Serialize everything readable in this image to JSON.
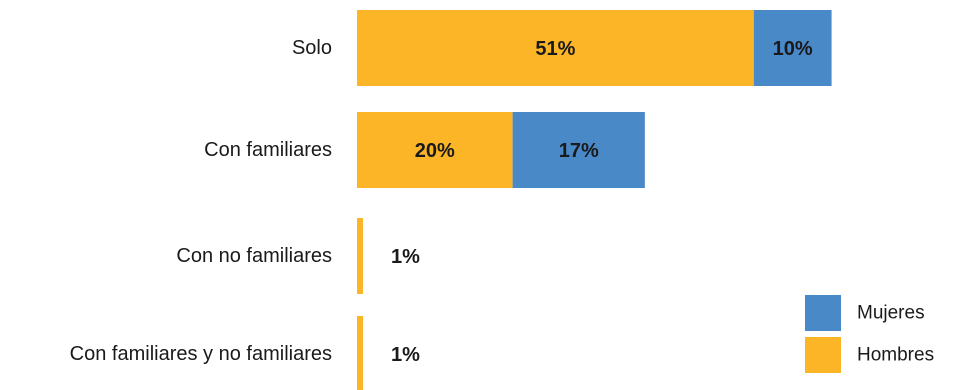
{
  "chart_data": {
    "type": "bar",
    "orientation": "horizontal",
    "stacked": true,
    "categories": [
      "Solo",
      "Con familiares",
      "Con no familiares",
      "Con familiares y no familiares"
    ],
    "series": [
      {
        "name": "Hombres",
        "values": [
          51,
          20,
          1,
          1
        ],
        "labels": [
          "51%",
          "20%",
          "1%",
          "1%"
        ],
        "color": "#FBB526"
      },
      {
        "name": "Mujeres",
        "values": [
          10,
          17,
          0,
          0
        ],
        "labels": [
          "10%",
          "17%",
          "",
          ""
        ],
        "color": "#4A89C8"
      }
    ],
    "legend": {
      "position": "bottom-right",
      "order": [
        "Mujeres",
        "Hombres"
      ]
    },
    "grid": false,
    "xlim": [
      0,
      61
    ]
  }
}
